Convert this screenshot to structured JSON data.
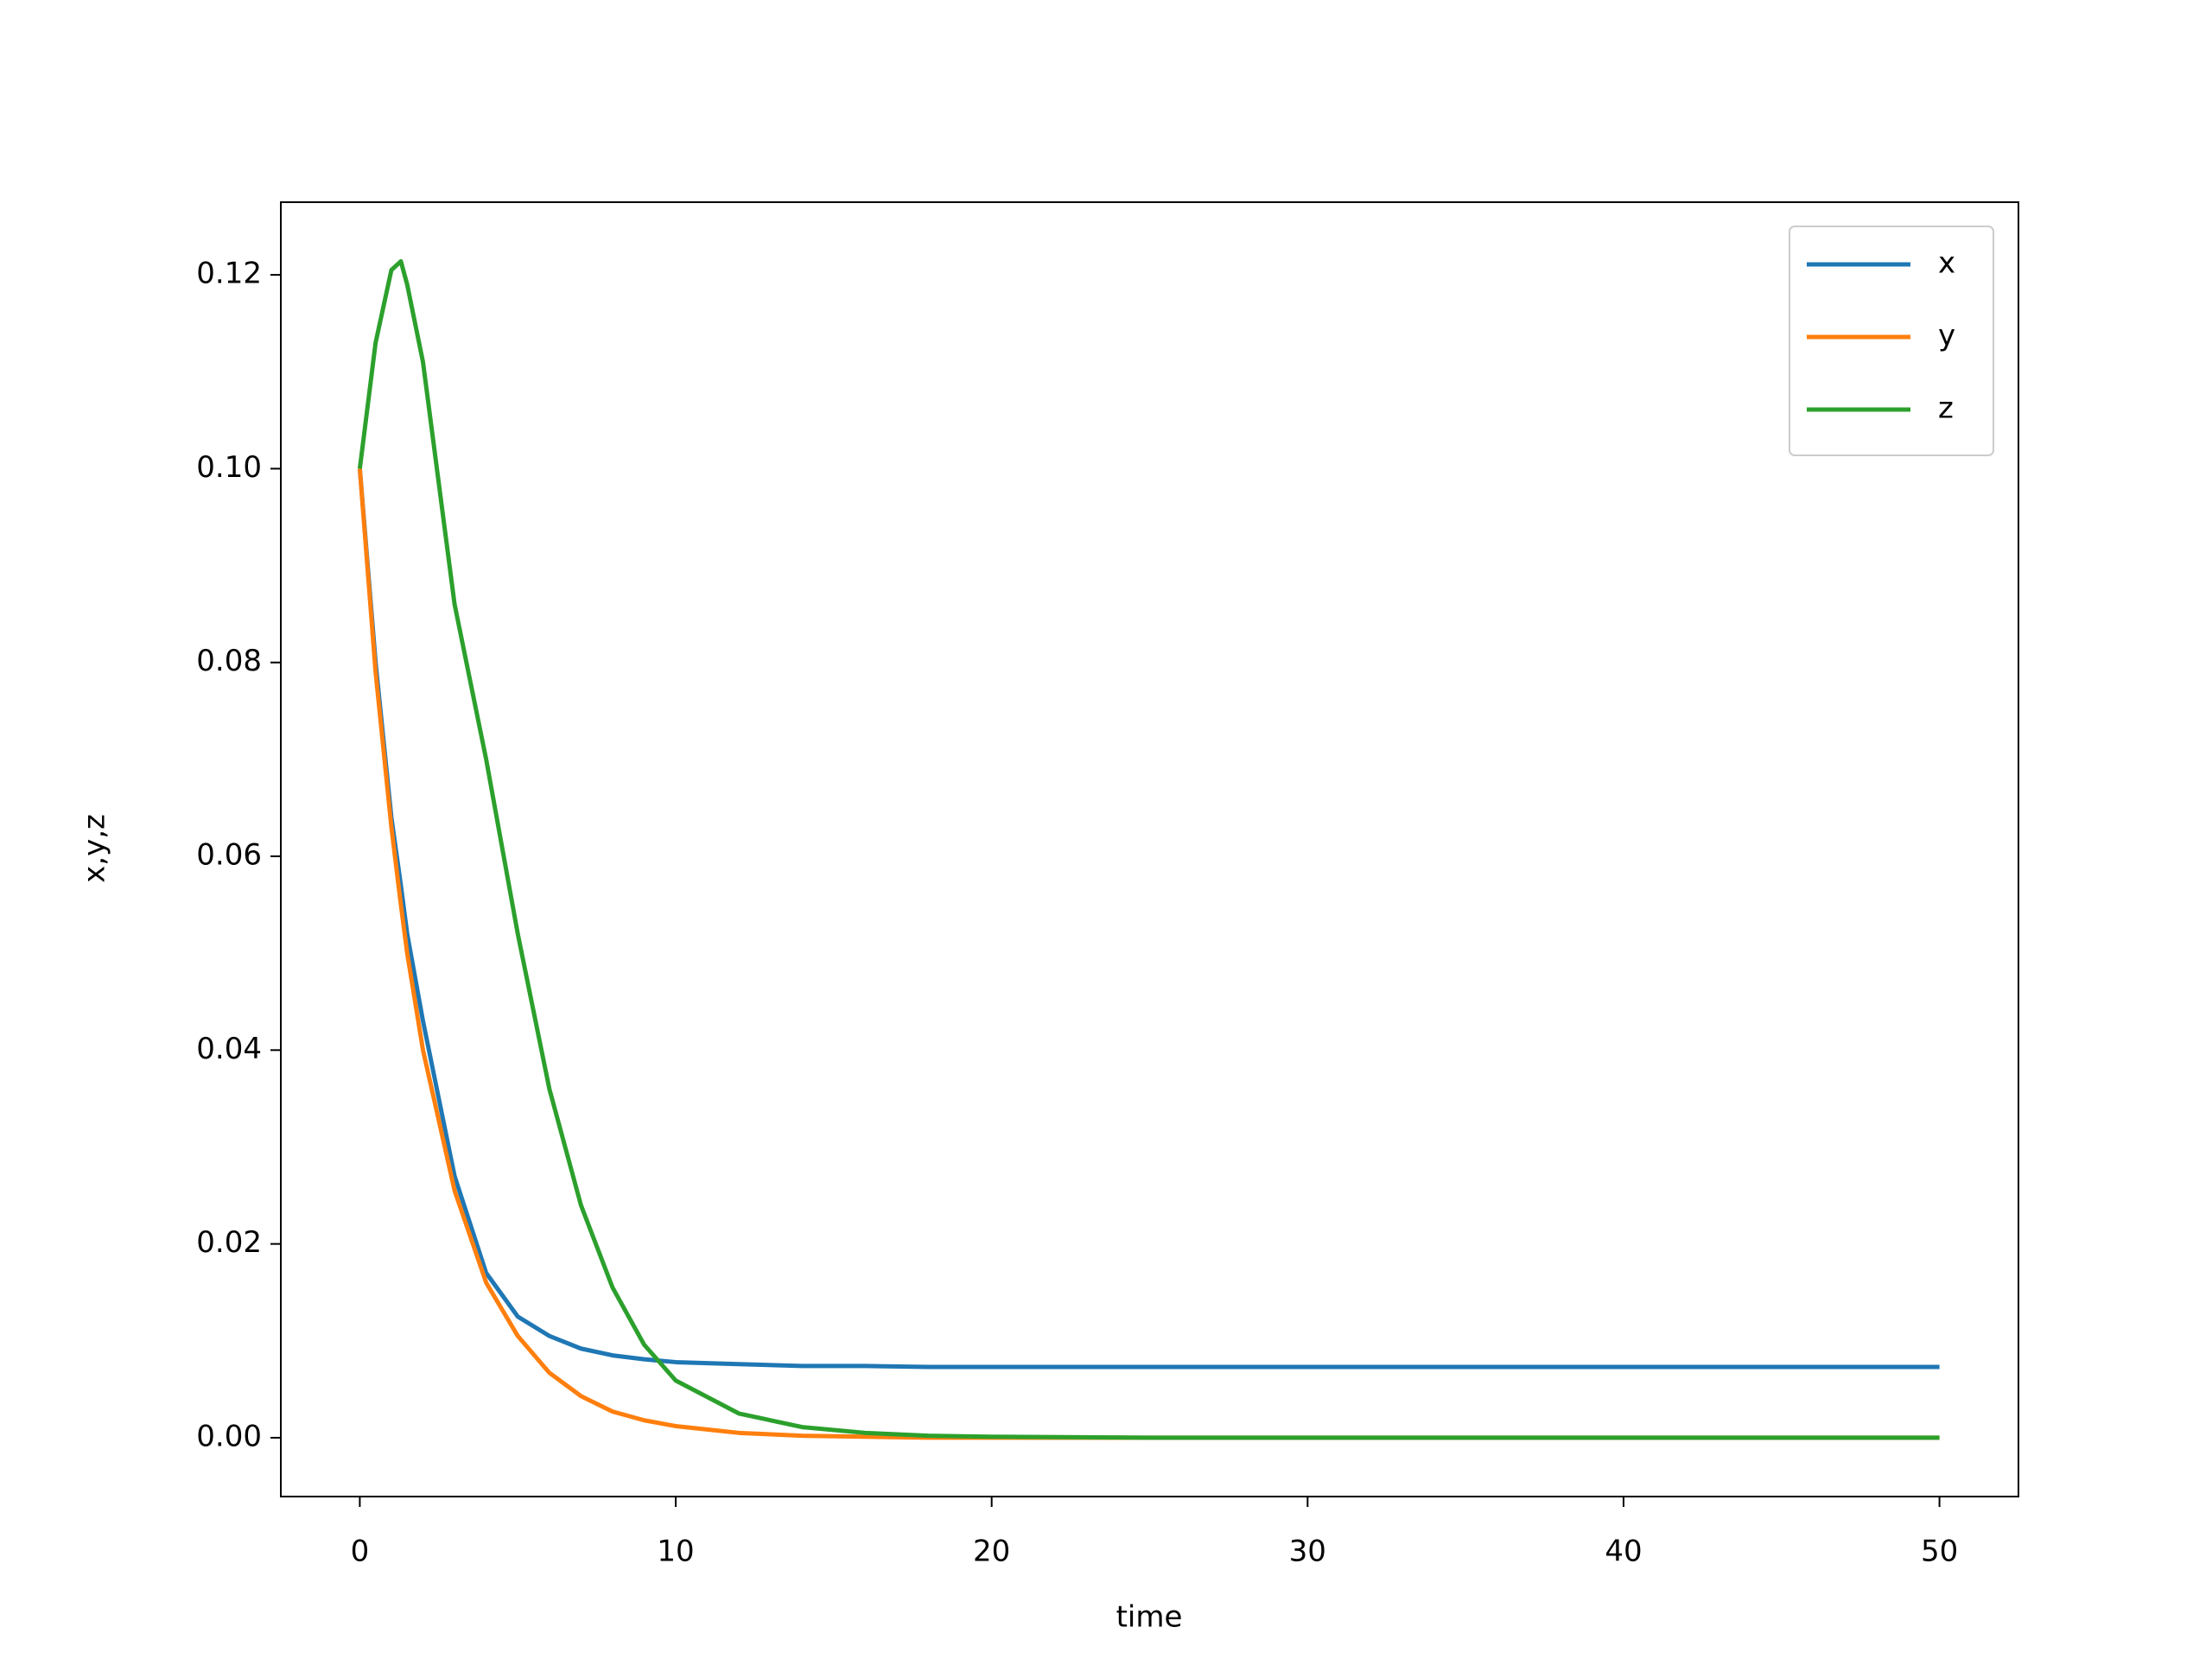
{
  "chart_data": {
    "type": "line",
    "xlabel": "time",
    "ylabel": "x,y,z",
    "x": [
      0,
      0.5,
      1,
      1.3,
      1.5,
      2,
      3,
      4,
      5,
      6,
      7,
      8,
      9,
      10,
      12,
      14,
      16,
      18,
      20,
      25,
      30,
      40,
      50
    ],
    "series": [
      {
        "name": "x",
        "color": "#1f77b4",
        "values": [
          0.1,
          0.08,
          0.064,
          0.057,
          0.052,
          0.043,
          0.027,
          0.017,
          0.0125,
          0.0105,
          0.0092,
          0.0085,
          0.0081,
          0.0078,
          0.0076,
          0.0074,
          0.0074,
          0.0073,
          0.0073,
          0.0073,
          0.0073,
          0.0073,
          0.0073
        ]
      },
      {
        "name": "y",
        "color": "#ff7f0e",
        "values": [
          0.1,
          0.079,
          0.063,
          0.055,
          0.05,
          0.04,
          0.0255,
          0.016,
          0.0105,
          0.0067,
          0.0043,
          0.0027,
          0.0018,
          0.0012,
          0.0005,
          0.0002,
          0.0001,
          0,
          0,
          0,
          0,
          0,
          0
        ]
      },
      {
        "name": "z",
        "color": "#2ca02c",
        "values": [
          0.1,
          0.113,
          0.1205,
          0.1214,
          0.119,
          0.111,
          0.086,
          0.07,
          0.052,
          0.036,
          0.024,
          0.0155,
          0.0096,
          0.0059,
          0.0025,
          0.0011,
          0.0005,
          0.0002,
          0.0001,
          0,
          0,
          0,
          0
        ]
      }
    ],
    "xlim": [
      -2.5,
      52.5
    ],
    "ylim": [
      -0.00607,
      0.1275
    ],
    "xticks": [
      0,
      10,
      20,
      30,
      40,
      50
    ],
    "yticks": [
      {
        "value": 0,
        "label": "0.00"
      },
      {
        "value": 0.02,
        "label": "0.02"
      },
      {
        "value": 0.04,
        "label": "0.04"
      },
      {
        "value": 0.06,
        "label": "0.06"
      },
      {
        "value": 0.08,
        "label": "0.08"
      },
      {
        "value": 0.1,
        "label": "0.10"
      },
      {
        "value": 0.12,
        "label": "0.12"
      }
    ],
    "grid": false,
    "legend": "upper right"
  }
}
